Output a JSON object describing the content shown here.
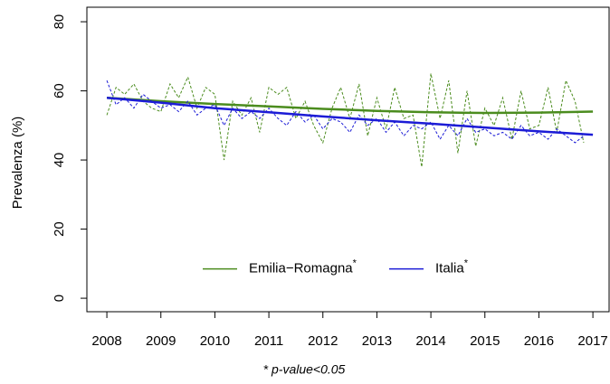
{
  "chart_data": {
    "type": "line",
    "ylabel": "Prevalenza (%)",
    "footnote": "* p-value<0.05",
    "xlim": [
      2007.63,
      2017.3
    ],
    "ylim": [
      -3.9,
      84.2
    ],
    "xticks": [
      2008,
      2009,
      2010,
      2011,
      2012,
      2013,
      2014,
      2015,
      2016,
      2017
    ],
    "yticks": [
      0,
      20,
      40,
      60,
      80
    ],
    "legend": "bottom",
    "series": [
      {
        "name": "Emilia−Romagna",
        "name_note": "*",
        "color": "#4b8c1e",
        "x": [
          2008,
          2008.17,
          2008.33,
          2008.5,
          2008.67,
          2008.83,
          2009,
          2009.17,
          2009.33,
          2009.5,
          2009.67,
          2009.83,
          2010,
          2010.17,
          2010.33,
          2010.5,
          2010.67,
          2010.83,
          2011,
          2011.17,
          2011.33,
          2011.5,
          2011.67,
          2011.83,
          2012,
          2012.17,
          2012.33,
          2012.5,
          2012.67,
          2012.83,
          2013,
          2013.17,
          2013.33,
          2013.5,
          2013.67,
          2013.83,
          2014,
          2014.17,
          2014.33,
          2014.5,
          2014.67,
          2014.83,
          2015,
          2015.17,
          2015.33,
          2015.5,
          2015.67,
          2015.83,
          2016,
          2016.17,
          2016.33,
          2016.5,
          2016.67,
          2016.83
        ],
        "values": [
          53,
          61,
          59,
          62,
          57,
          55,
          54,
          62,
          58,
          64,
          55,
          61,
          59,
          40,
          57,
          53,
          58,
          48,
          61,
          59,
          61,
          52,
          57,
          50,
          45,
          55,
          61,
          52,
          62,
          47,
          58,
          49,
          61,
          52,
          53,
          38,
          65,
          52,
          63,
          42,
          60,
          44,
          55,
          50,
          58,
          46,
          60,
          49,
          50,
          61,
          48,
          63,
          57,
          45
        ],
        "trend_x": [
          2008,
          2009,
          2010,
          2011,
          2012,
          2013,
          2014,
          2015,
          2016,
          2017
        ],
        "trend": [
          58,
          57,
          56.2,
          55.5,
          54.8,
          54.2,
          53.8,
          53.6,
          53.7,
          54
        ]
      },
      {
        "name": "Italia",
        "name_note": "*",
        "color": "#1c1cd6",
        "x": [
          2008,
          2008.17,
          2008.33,
          2008.5,
          2008.67,
          2008.83,
          2009,
          2009.17,
          2009.33,
          2009.5,
          2009.67,
          2009.83,
          2010,
          2010.17,
          2010.33,
          2010.5,
          2010.67,
          2010.83,
          2011,
          2011.17,
          2011.33,
          2011.5,
          2011.67,
          2011.83,
          2012,
          2012.17,
          2012.33,
          2012.5,
          2012.67,
          2012.83,
          2013,
          2013.17,
          2013.33,
          2013.5,
          2013.67,
          2013.83,
          2014,
          2014.17,
          2014.33,
          2014.5,
          2014.67,
          2014.83,
          2015,
          2015.17,
          2015.33,
          2015.5,
          2015.67,
          2015.83,
          2016,
          2016.17,
          2016.33,
          2016.5,
          2016.67,
          2016.83
        ],
        "values": [
          63,
          56,
          58,
          55,
          59,
          57,
          55,
          56,
          54,
          57,
          53,
          55,
          56,
          50,
          55,
          52,
          54,
          52,
          55,
          52,
          50,
          54,
          51,
          53,
          49,
          52,
          51,
          48,
          53,
          50,
          52,
          48,
          51,
          47,
          50,
          49,
          51,
          46,
          50,
          47,
          52,
          48,
          49,
          47,
          48,
          46,
          50,
          47,
          48,
          46,
          49,
          47,
          45,
          47
        ],
        "trend_x": [
          2008,
          2009,
          2010,
          2011,
          2012,
          2013,
          2014,
          2015,
          2016,
          2017
        ],
        "trend": [
          58,
          56.6,
          55,
          53.8,
          52.6,
          51.5,
          50.5,
          49.4,
          48.3,
          47.3
        ]
      }
    ]
  }
}
